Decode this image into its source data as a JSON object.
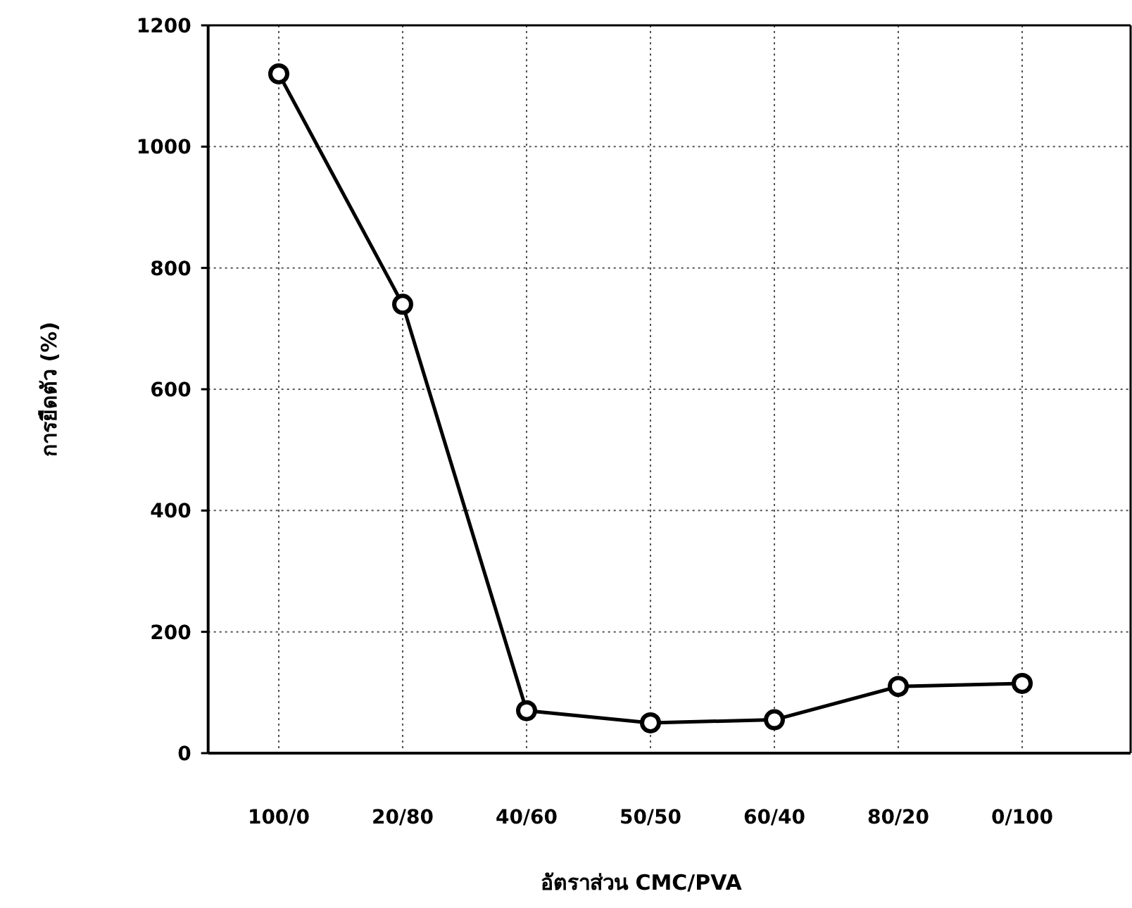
{
  "chart_data": {
    "type": "line",
    "xlabel": "อัตราส่วน CMC/PVA",
    "ylabel": "การยืดตัว (%)",
    "categories": [
      "100/0",
      "20/80",
      "40/60",
      "50/50",
      "60/40",
      "80/20",
      "0/100"
    ],
    "series": [
      {
        "color": "#000000",
        "values": [
          1120,
          740,
          70,
          50,
          55,
          110,
          115
        ]
      }
    ],
    "ylim": [
      0,
      1200
    ],
    "yticks": [
      0,
      200,
      400,
      600,
      800,
      1000,
      1200
    ],
    "grid": true,
    "marker": "circle",
    "line_style": "solid"
  }
}
